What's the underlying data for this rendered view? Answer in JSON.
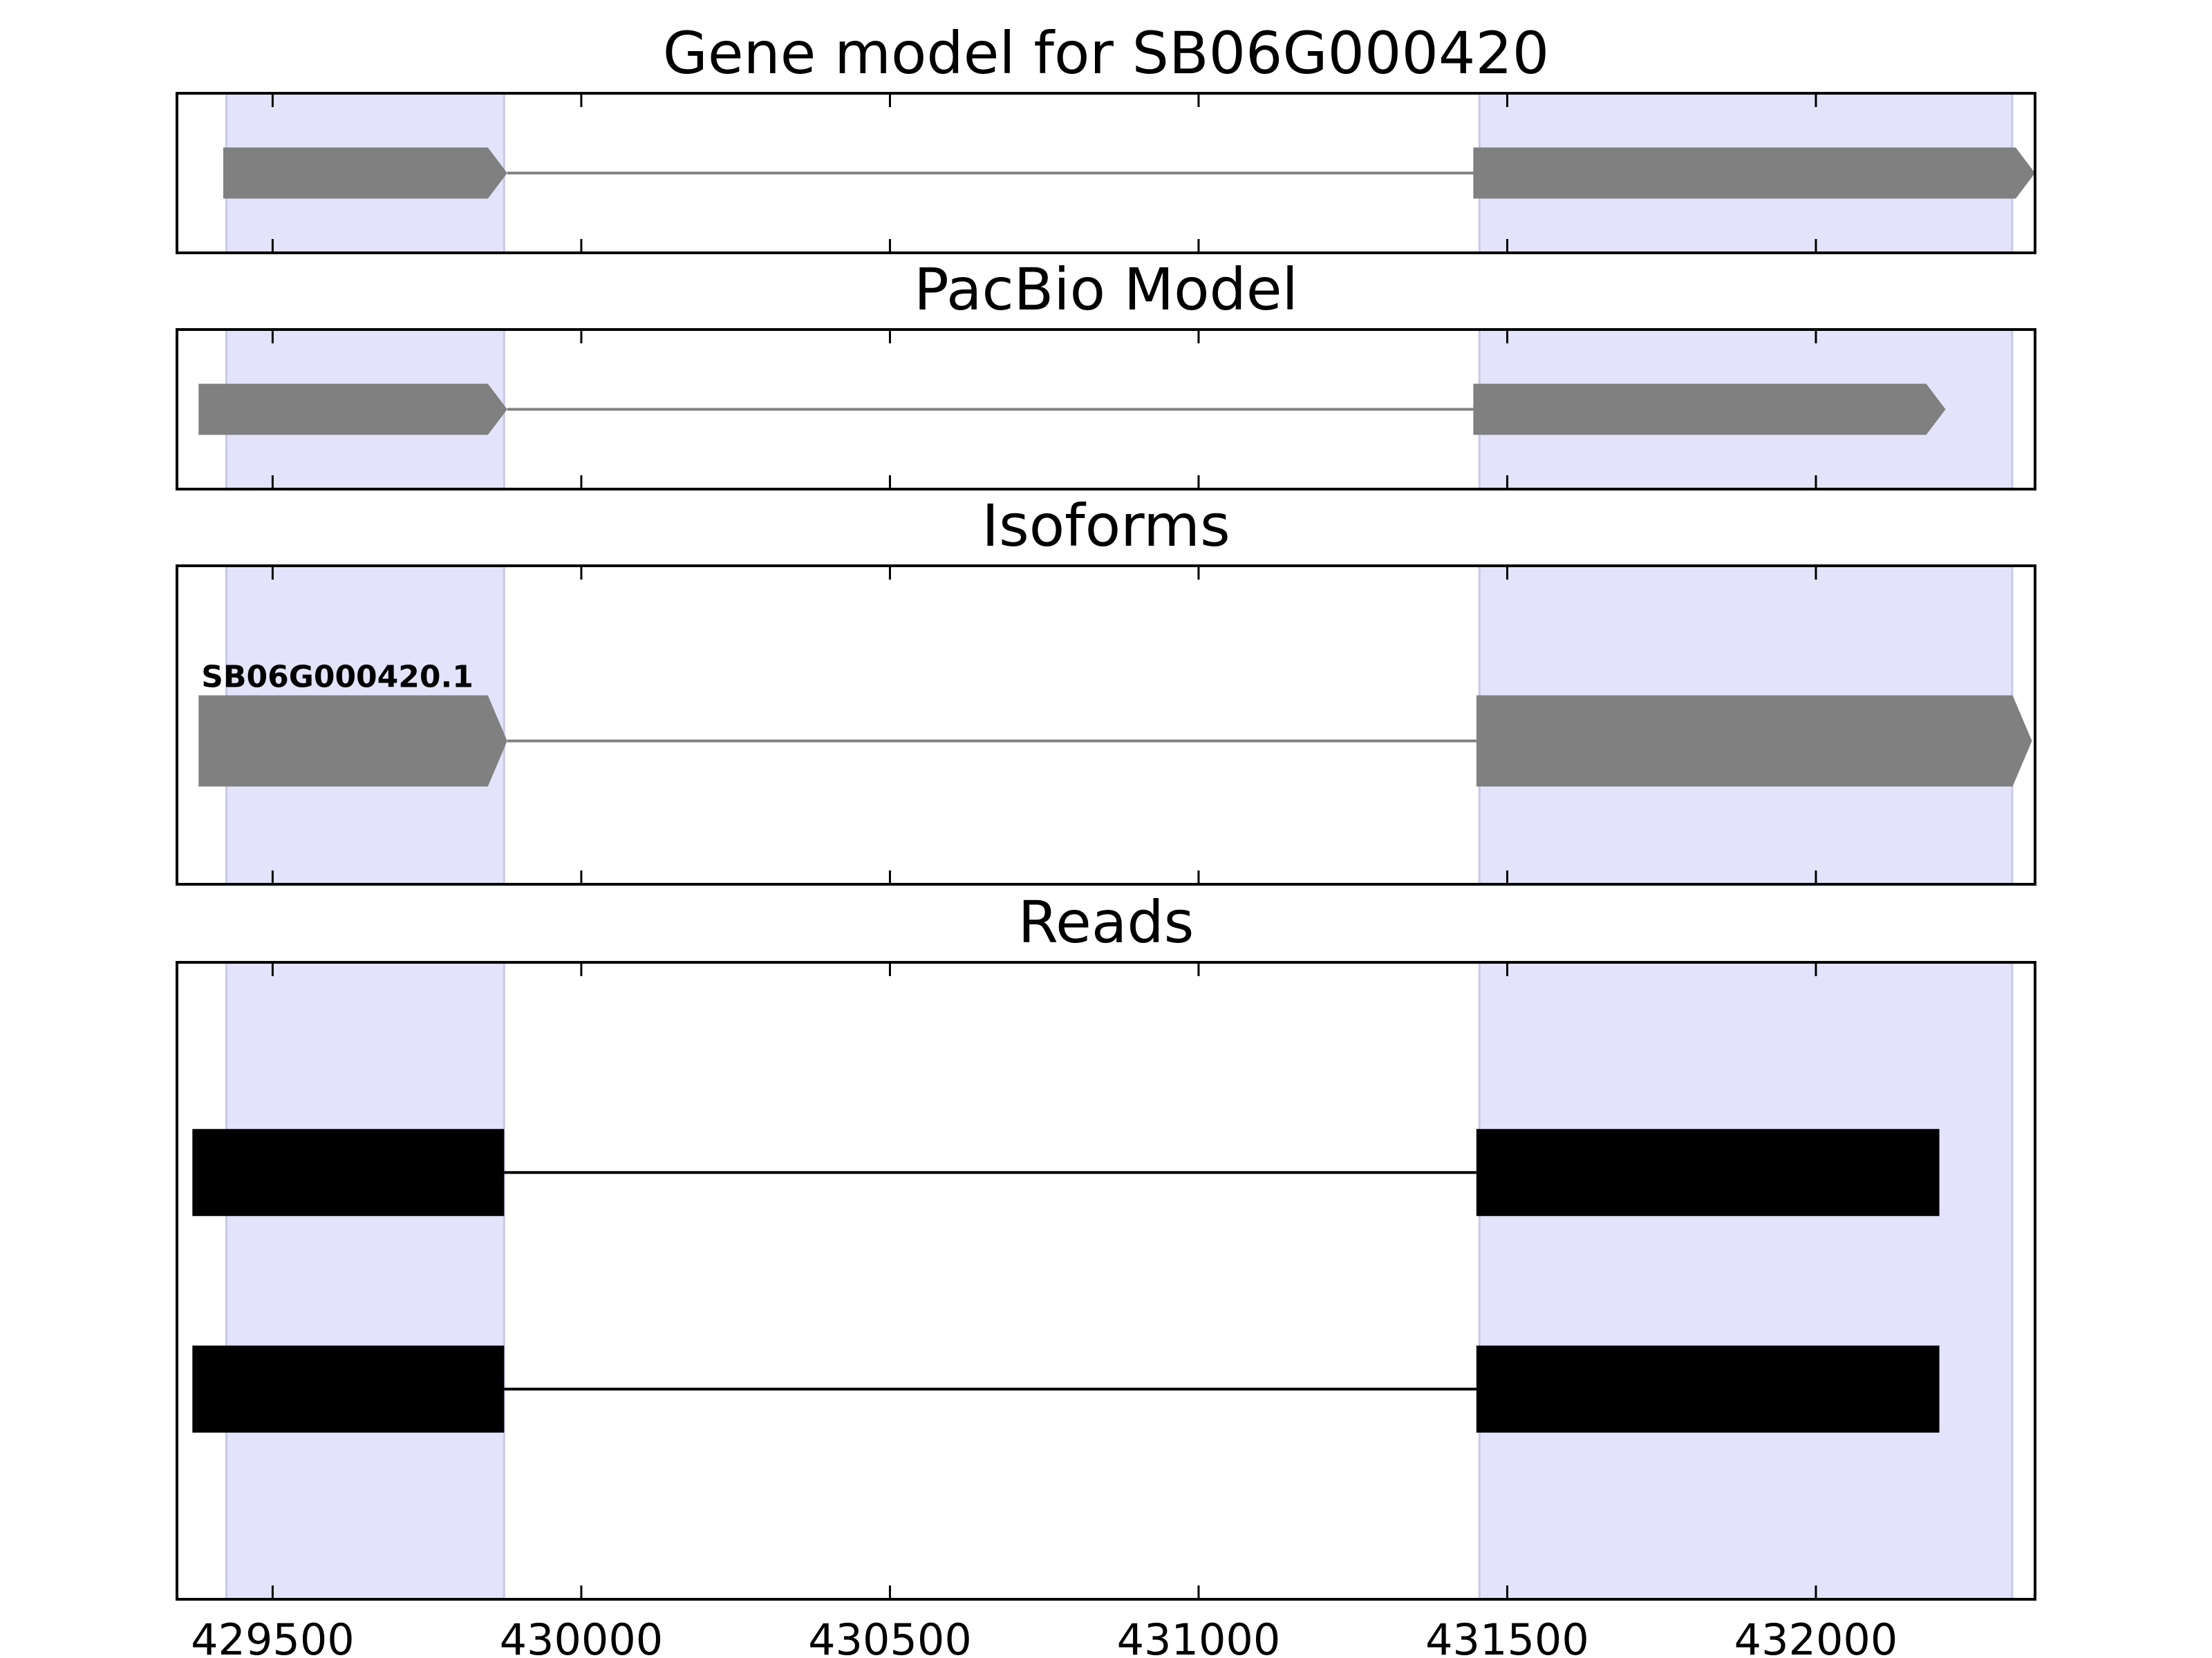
{
  "chart_data": {
    "type": "gene-track",
    "xlim": [
      429345,
      432355
    ],
    "xticks": [
      429500,
      430000,
      430500,
      431000,
      431500,
      432000
    ],
    "xtick_labels": [
      "429500",
      "430000",
      "430500",
      "431000",
      "431500",
      "432000"
    ],
    "highlight_regions": [
      [
        429425,
        429875
      ],
      [
        431455,
        432318
      ]
    ],
    "colors": {
      "highlight": "#e3e3fb",
      "highlight_edge": "#c8c8e8",
      "gene": "#808080",
      "read": "#000000",
      "frame": "#000000"
    },
    "panels": [
      {
        "id": "gene-model",
        "title": "Gene model for SB06G000420",
        "y_center": 0.5,
        "tracks": [
          {
            "label": "",
            "color": "#808080",
            "style": "arrow",
            "exons": [
              [
                429420,
                429880
              ],
              [
                431445,
                432355
              ]
            ]
          }
        ]
      },
      {
        "id": "pacbio-model",
        "title": "PacBio Model",
        "y_center": 0.5,
        "tracks": [
          {
            "label": "",
            "color": "#808080",
            "style": "arrow",
            "exons": [
              [
                429380,
                429880
              ],
              [
                431445,
                432210
              ]
            ]
          }
        ]
      },
      {
        "id": "isoforms",
        "title": "Isoforms",
        "y_center": 0.55,
        "tracks": [
          {
            "label": "SB06G000420.1",
            "color": "#808080",
            "style": "arrow",
            "exons": [
              [
                429380,
                429880
              ],
              [
                431450,
                432350
              ]
            ]
          }
        ]
      },
      {
        "id": "reads",
        "title": "Reads",
        "tracks": [
          {
            "label": "",
            "color": "#000000",
            "style": "block",
            "y_center": 0.33,
            "exons": [
              [
                429370,
                429875
              ],
              [
                431450,
                432200
              ]
            ]
          },
          {
            "label": "",
            "color": "#000000",
            "style": "block",
            "y_center": 0.67,
            "exons": [
              [
                429370,
                429875
              ],
              [
                431450,
                432200
              ]
            ]
          }
        ]
      }
    ]
  }
}
